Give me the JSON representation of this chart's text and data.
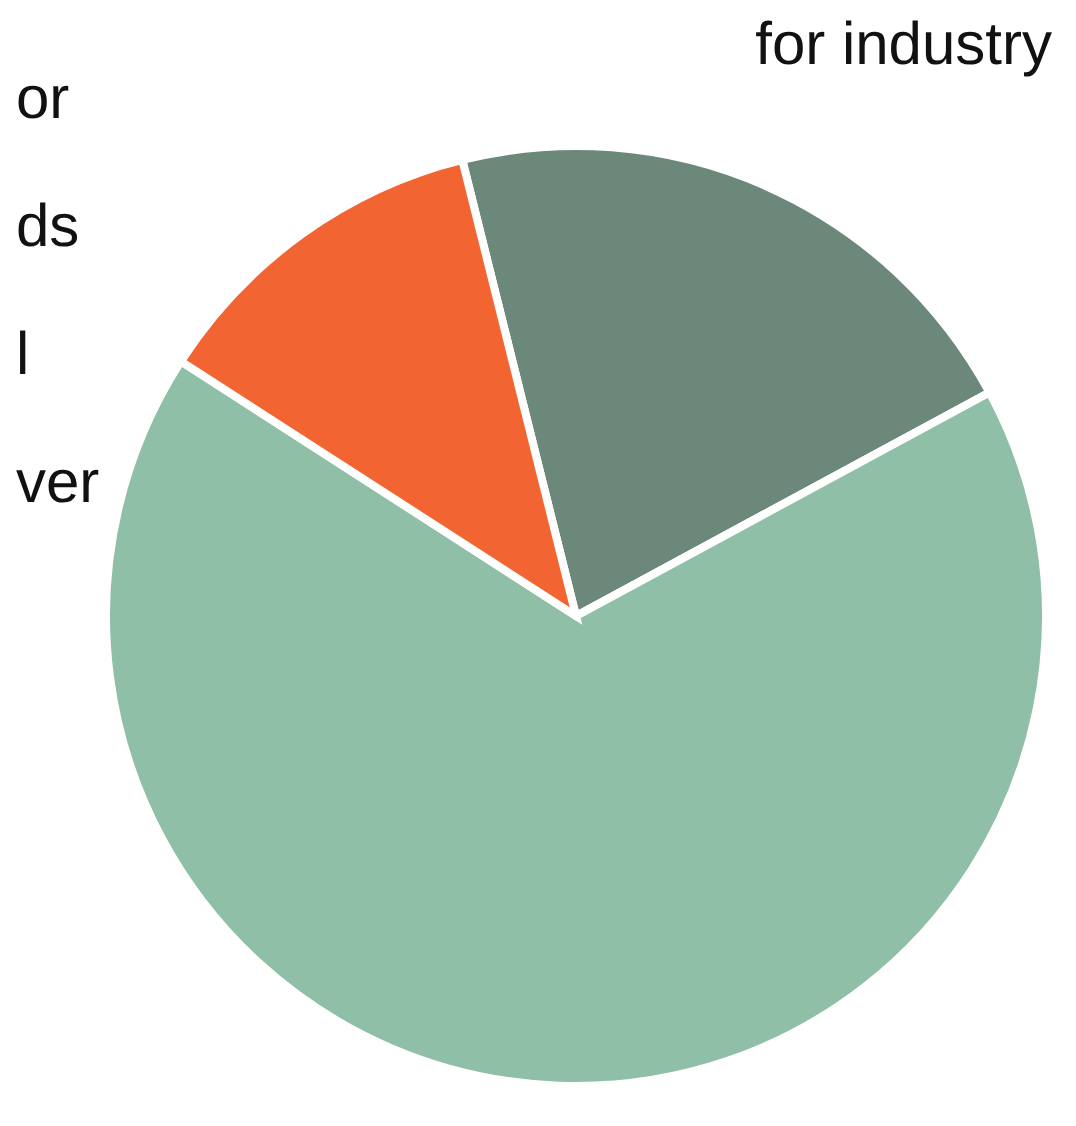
{
  "chart_data": {
    "type": "pie",
    "categories": [
      null,
      null,
      null
    ],
    "values": [
      21,
      67,
      12
    ],
    "colors": [
      "#6b887a",
      "#8fbfa6",
      "#f26532"
    ],
    "annotations": [
      "for industry",
      "or",
      "ds",
      "l",
      "ver"
    ]
  }
}
